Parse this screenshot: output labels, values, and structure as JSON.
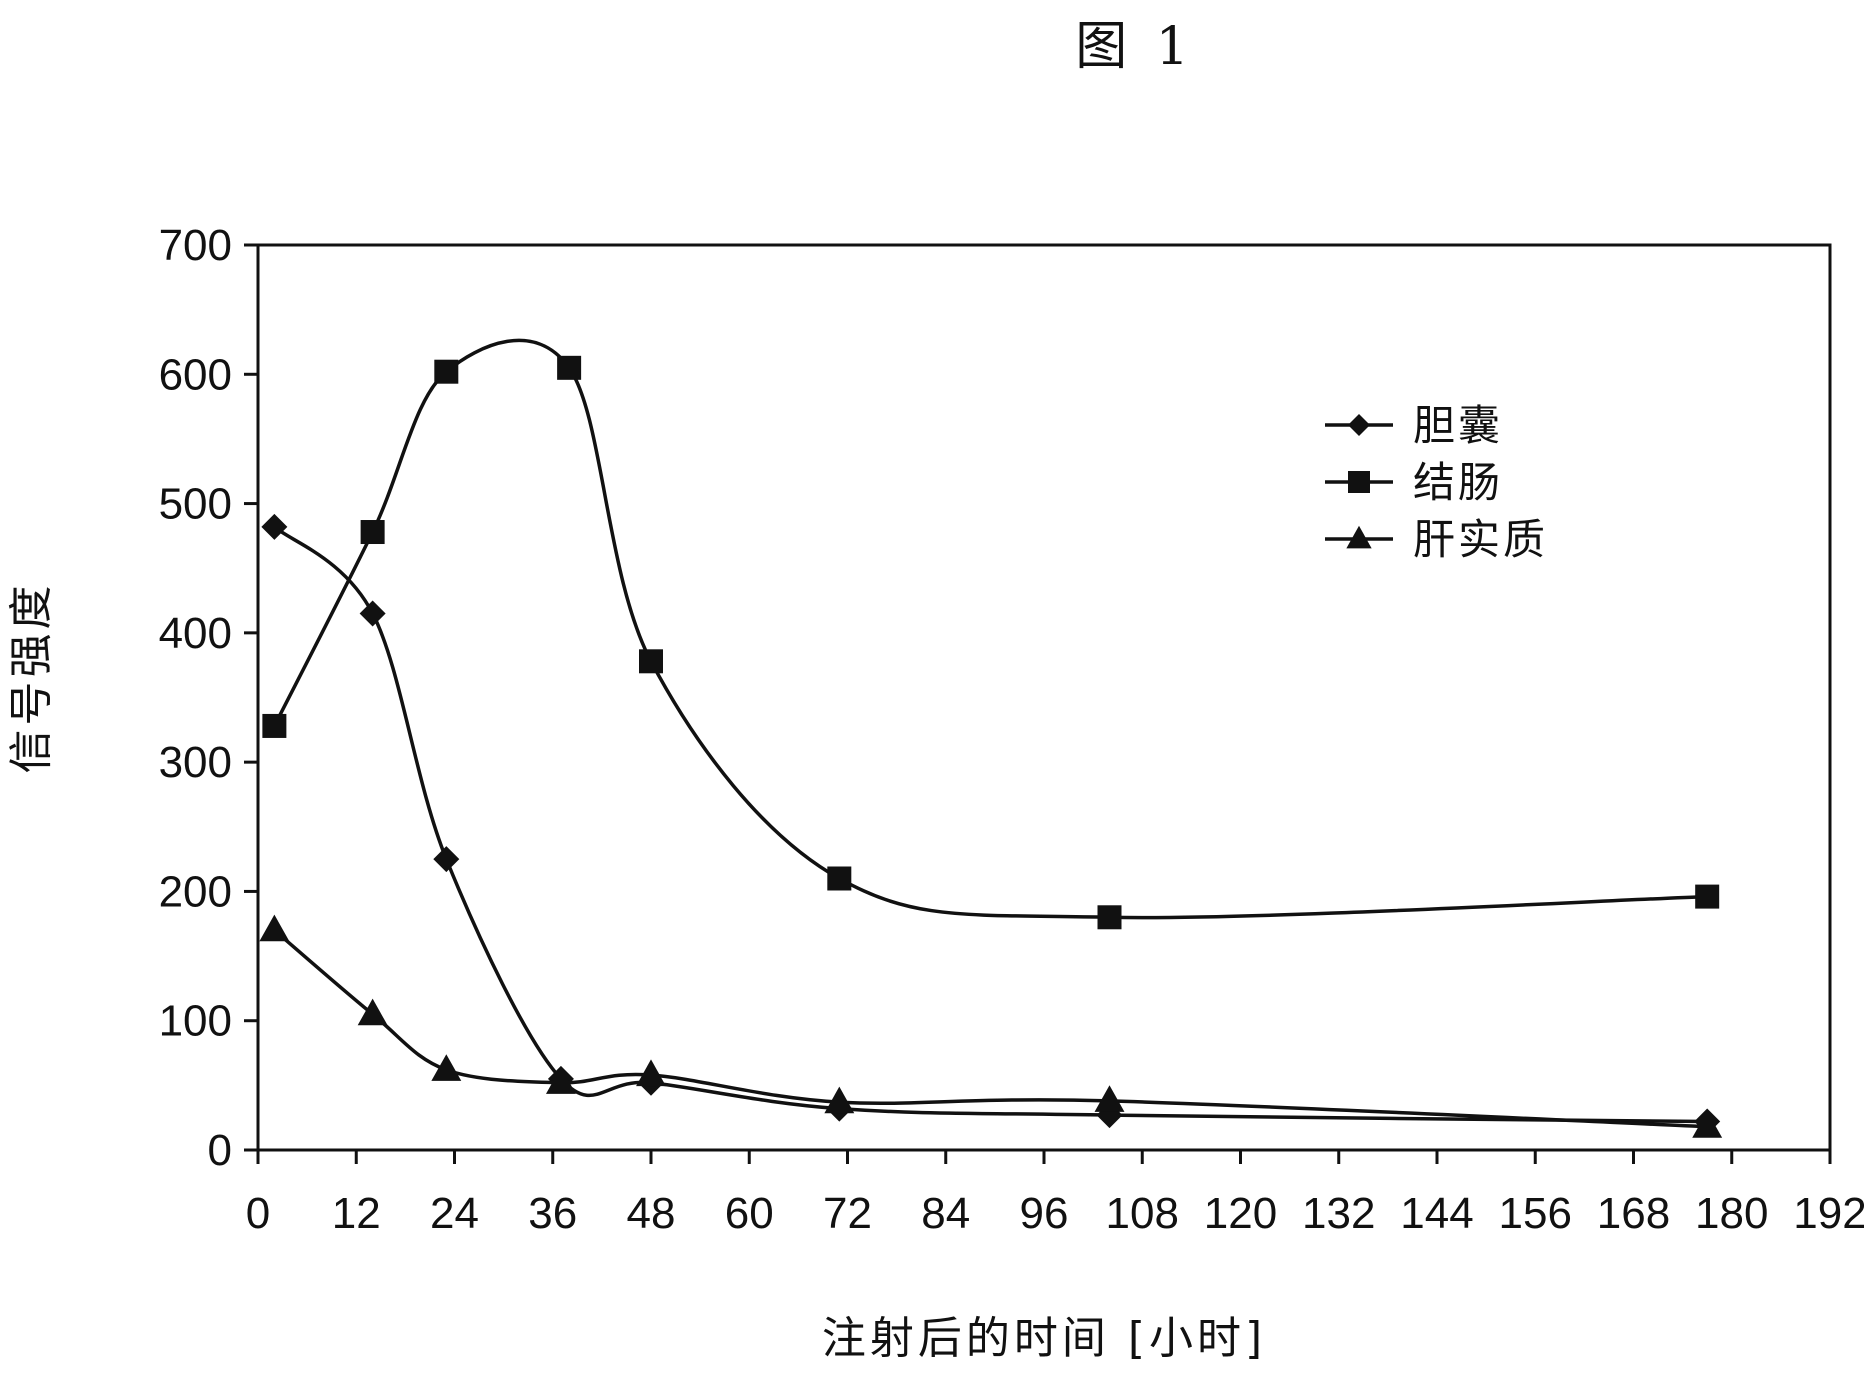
{
  "figure_label": "图 1",
  "chart_data": {
    "type": "line",
    "title": "",
    "xlabel": "注射后的时间 [小时]",
    "ylabel": "信号强度",
    "xlim": [
      0,
      192
    ],
    "ylim": [
      0,
      700
    ],
    "xticks": [
      0,
      12,
      24,
      36,
      48,
      60,
      72,
      84,
      96,
      108,
      120,
      132,
      144,
      156,
      168,
      180,
      192
    ],
    "yticks": [
      0,
      100,
      200,
      300,
      400,
      500,
      600,
      700
    ],
    "grid": false,
    "legend_position": "top-right",
    "series": [
      {
        "name": "胆囊",
        "marker": "diamond",
        "color": "#111111",
        "x": [
          2,
          14,
          23,
          37,
          48,
          71,
          104,
          177
        ],
        "y": [
          482,
          415,
          225,
          55,
          52,
          32,
          27,
          22
        ]
      },
      {
        "name": "结肠",
        "marker": "square",
        "color": "#111111",
        "x": [
          2,
          14,
          23,
          38,
          48,
          71,
          104,
          177
        ],
        "y": [
          328,
          478,
          602,
          605,
          378,
          210,
          180,
          196
        ]
      },
      {
        "name": "肝实质",
        "marker": "triangle",
        "color": "#111111",
        "x": [
          2,
          14,
          23,
          37,
          48,
          71,
          104,
          177
        ],
        "y": [
          170,
          105,
          62,
          52,
          58,
          37,
          38,
          18
        ]
      }
    ]
  }
}
